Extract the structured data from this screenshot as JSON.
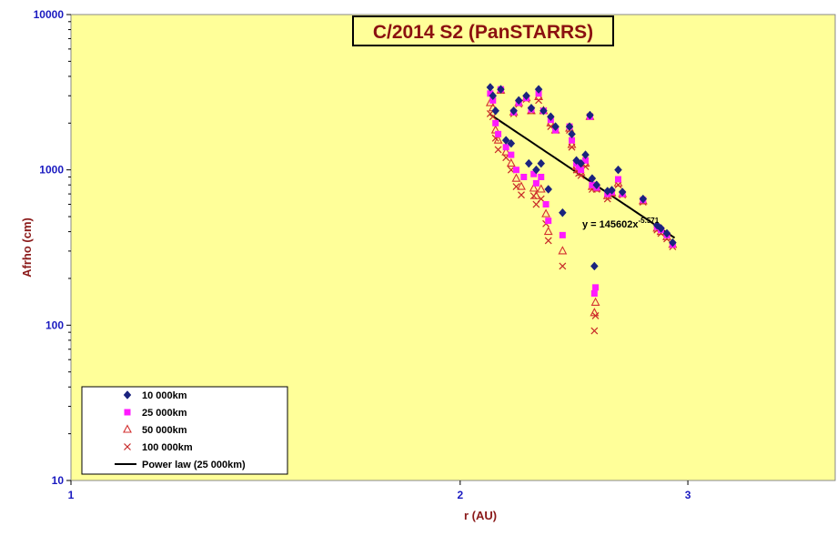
{
  "chart_data": {
    "type": "scatter",
    "title": "C/2014 S2 (PanSTARRS)",
    "xlabel": "r (AU)",
    "ylabel": "Afrho (cm)",
    "x_scale": "log",
    "y_scale": "log",
    "xlim": [
      1,
      3.9
    ],
    "ylim": [
      10,
      10000
    ],
    "x_ticks": [
      "1",
      "2",
      "3"
    ],
    "y_ticks": [
      "10",
      "100",
      "1000",
      "10000"
    ],
    "legend_position": "bottom-left",
    "series": [
      {
        "name": "10 000km",
        "marker": "diamond",
        "color": "#1a237e",
        "points": [
          [
            2.11,
            3400
          ],
          [
            2.12,
            3000
          ],
          [
            2.13,
            2400
          ],
          [
            2.15,
            3300
          ],
          [
            2.17,
            1550
          ],
          [
            2.19,
            1480
          ],
          [
            2.2,
            2400
          ],
          [
            2.22,
            2800
          ],
          [
            2.25,
            3000
          ],
          [
            2.26,
            1100
          ],
          [
            2.27,
            2500
          ],
          [
            2.29,
            1000
          ],
          [
            2.3,
            3300
          ],
          [
            2.31,
            1100
          ],
          [
            2.32,
            2400
          ],
          [
            2.34,
            750
          ],
          [
            2.35,
            2200
          ],
          [
            2.37,
            1900
          ],
          [
            2.4,
            530
          ],
          [
            2.43,
            1900
          ],
          [
            2.44,
            1700
          ],
          [
            2.46,
            1150
          ],
          [
            2.48,
            1100
          ],
          [
            2.5,
            1250
          ],
          [
            2.52,
            2250
          ],
          [
            2.53,
            880
          ],
          [
            2.54,
            240
          ],
          [
            2.55,
            800
          ],
          [
            2.6,
            730
          ],
          [
            2.62,
            740
          ],
          [
            2.65,
            1000
          ],
          [
            2.67,
            720
          ],
          [
            2.77,
            650
          ],
          [
            2.84,
            440
          ],
          [
            2.86,
            420
          ],
          [
            2.89,
            390
          ],
          [
            2.92,
            340
          ]
        ]
      },
      {
        "name": "25 000km",
        "marker": "square",
        "color": "#ff1aff",
        "points": [
          [
            2.11,
            3100
          ],
          [
            2.12,
            2800
          ],
          [
            2.13,
            2000
          ],
          [
            2.14,
            1700
          ],
          [
            2.15,
            3300
          ],
          [
            2.17,
            1400
          ],
          [
            2.19,
            1250
          ],
          [
            2.2,
            2350
          ],
          [
            2.21,
            1000
          ],
          [
            2.22,
            2700
          ],
          [
            2.24,
            900
          ],
          [
            2.25,
            2900
          ],
          [
            2.27,
            2450
          ],
          [
            2.28,
            940
          ],
          [
            2.29,
            820
          ],
          [
            2.3,
            3100
          ],
          [
            2.31,
            900
          ],
          [
            2.32,
            2400
          ],
          [
            2.33,
            600
          ],
          [
            2.34,
            470
          ],
          [
            2.35,
            2100
          ],
          [
            2.37,
            1800
          ],
          [
            2.4,
            380
          ],
          [
            2.43,
            1900
          ],
          [
            2.44,
            1550
          ],
          [
            2.46,
            1100
          ],
          [
            2.47,
            1050
          ],
          [
            2.48,
            1000
          ],
          [
            2.5,
            1150
          ],
          [
            2.52,
            2200
          ],
          [
            2.53,
            800
          ],
          [
            2.54,
            160
          ],
          [
            2.545,
            175
          ],
          [
            2.55,
            770
          ],
          [
            2.6,
            700
          ],
          [
            2.62,
            720
          ],
          [
            2.65,
            870
          ],
          [
            2.67,
            700
          ],
          [
            2.77,
            640
          ],
          [
            2.84,
            430
          ],
          [
            2.86,
            410
          ],
          [
            2.89,
            380
          ],
          [
            2.92,
            330
          ]
        ]
      },
      {
        "name": "50 000km",
        "marker": "triangle",
        "color": "#d32f2f",
        "points": [
          [
            2.11,
            2700
          ],
          [
            2.12,
            2500
          ],
          [
            2.13,
            1800
          ],
          [
            2.14,
            1550
          ],
          [
            2.15,
            3250
          ],
          [
            2.17,
            1300
          ],
          [
            2.19,
            1100
          ],
          [
            2.2,
            2350
          ],
          [
            2.21,
            880
          ],
          [
            2.22,
            2700
          ],
          [
            2.23,
            780
          ],
          [
            2.25,
            2900
          ],
          [
            2.27,
            2400
          ],
          [
            2.28,
            760
          ],
          [
            2.29,
            680
          ],
          [
            2.3,
            2950
          ],
          [
            2.31,
            750
          ],
          [
            2.32,
            2400
          ],
          [
            2.33,
            520
          ],
          [
            2.34,
            400
          ],
          [
            2.35,
            2000
          ],
          [
            2.37,
            1800
          ],
          [
            2.4,
            300
          ],
          [
            2.43,
            1850
          ],
          [
            2.44,
            1450
          ],
          [
            2.46,
            1050
          ],
          [
            2.47,
            1000
          ],
          [
            2.48,
            960
          ],
          [
            2.5,
            1100
          ],
          [
            2.52,
            2200
          ],
          [
            2.53,
            780
          ],
          [
            2.54,
            120
          ],
          [
            2.545,
            140
          ],
          [
            2.55,
            760
          ],
          [
            2.6,
            680
          ],
          [
            2.62,
            710
          ],
          [
            2.65,
            820
          ],
          [
            2.67,
            700
          ],
          [
            2.77,
            630
          ],
          [
            2.84,
            420
          ],
          [
            2.86,
            400
          ],
          [
            2.89,
            370
          ],
          [
            2.92,
            330
          ]
        ]
      },
      {
        "name": "100 000km",
        "marker": "x",
        "color": "#c62828",
        "points": [
          [
            2.11,
            2300
          ],
          [
            2.12,
            2200
          ],
          [
            2.13,
            1600
          ],
          [
            2.14,
            1350
          ],
          [
            2.15,
            3250
          ],
          [
            2.17,
            1200
          ],
          [
            2.19,
            1000
          ],
          [
            2.2,
            2300
          ],
          [
            2.21,
            780
          ],
          [
            2.22,
            2650
          ],
          [
            2.23,
            690
          ],
          [
            2.25,
            2850
          ],
          [
            2.27,
            2400
          ],
          [
            2.28,
            680
          ],
          [
            2.29,
            600
          ],
          [
            2.3,
            2800
          ],
          [
            2.31,
            650
          ],
          [
            2.32,
            2400
          ],
          [
            2.33,
            450
          ],
          [
            2.34,
            350
          ],
          [
            2.35,
            1900
          ],
          [
            2.37,
            1800
          ],
          [
            2.4,
            240
          ],
          [
            2.43,
            1800
          ],
          [
            2.44,
            1400
          ],
          [
            2.46,
            1000
          ],
          [
            2.47,
            950
          ],
          [
            2.48,
            920
          ],
          [
            2.5,
            1050
          ],
          [
            2.52,
            2200
          ],
          [
            2.53,
            750
          ],
          [
            2.54,
            92
          ],
          [
            2.545,
            115
          ],
          [
            2.55,
            750
          ],
          [
            2.6,
            650
          ],
          [
            2.62,
            700
          ],
          [
            2.65,
            800
          ],
          [
            2.67,
            690
          ],
          [
            2.77,
            620
          ],
          [
            2.84,
            410
          ],
          [
            2.86,
            390
          ],
          [
            2.89,
            360
          ],
          [
            2.92,
            320
          ]
        ]
      }
    ],
    "fit": {
      "name": "Power law (25 000km)",
      "color": "#000000",
      "coefficient": 145602,
      "exponent": -5.571,
      "x_range": [
        2.11,
        2.93
      ],
      "equation_prefix": "y = 145602x",
      "equation_exponent": "-5.571"
    }
  },
  "colors": {
    "plot_background": "#ffff99",
    "outer_background": "#ffffff",
    "title_box": "#ffff99",
    "title_border": "#000000"
  }
}
